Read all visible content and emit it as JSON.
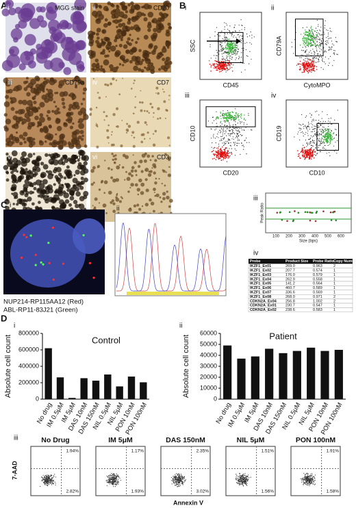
{
  "panel_a": {
    "letter": "A",
    "images": [
      {
        "index": "i",
        "label": "MGG stain"
      },
      {
        "index": "ii",
        "label": "CD20"
      },
      {
        "index": "iii",
        "label": "CD79a"
      },
      {
        "index": "iv",
        "label": "CD7"
      },
      {
        "index": "v",
        "label": "TdT"
      },
      {
        "index": "vi",
        "label": "CD3"
      }
    ]
  },
  "panel_b": {
    "letter": "B",
    "plots": [
      {
        "index": "i",
        "x_label": "CD45",
        "y_label": "SSC"
      },
      {
        "index": "ii",
        "x_label": "CytoMPO",
        "y_label": "CD79A"
      },
      {
        "index": "iii",
        "x_label": "CD20",
        "y_label": "CD10"
      },
      {
        "index": "iv",
        "x_label": "CD10",
        "y_label": "CD19"
      }
    ],
    "mlpa_plot": {
      "index": "iii",
      "x_label": "Size (bps)",
      "y_label": "Peak Ratio",
      "x_ticks": [
        "100",
        "200",
        "300",
        "400",
        "500",
        "600"
      ]
    },
    "mlpa_table": {
      "index": "iv",
      "header": [
        "Probe",
        "Product Size",
        "Probe Ratio",
        "Copy Number"
      ],
      "rows": [
        [
          "IKZF1_Ex01",
          "269.0",
          "0.963",
          "2"
        ],
        [
          "IKZF1_Ex02",
          "207.7",
          "0.574",
          "1"
        ],
        [
          "IKZF1_Ex03",
          "176.0",
          "0.579",
          "1"
        ],
        [
          "IKZF1_Ex04",
          "262.9",
          "0.558",
          "1"
        ],
        [
          "IKZF1_Ex05",
          "141.2",
          "0.564",
          "1"
        ],
        [
          "IKZF1_Ex06",
          "460.7",
          "0.589",
          "1"
        ],
        [
          "IKZF1_Ex07",
          "336.6",
          "0.569",
          "1"
        ],
        [
          "IKZF1_Ex08",
          "268.0",
          "0.971",
          "2"
        ],
        [
          "CDKN2A_Ex04",
          "256.8",
          "1.002",
          "2"
        ],
        [
          "CDKN2A_Ex01",
          "230.7",
          "0.547",
          "1"
        ],
        [
          "CDKN2A_Ex02",
          "238.6",
          "0.583",
          "1"
        ]
      ]
    }
  },
  "panel_c": {
    "letter": "C",
    "fish": {
      "index": "i",
      "captions": [
        "NUP214-RP115AA12 (Red)",
        "ABL-RP11-83J21 (Green)"
      ]
    },
    "trace": {
      "index": "ii"
    }
  },
  "panel_d": {
    "letter": "D",
    "chart_index": [
      "i",
      "ii"
    ],
    "flow": {
      "index": "iii",
      "y_label": "7-AAD",
      "x_label": "Annexin V",
      "plots": [
        {
          "title": "No Drug",
          "upper_right": "1.94%",
          "lower_right": "2.82%"
        },
        {
          "title": "IM 5μM",
          "upper_right": "1.17%",
          "lower_right": "1.93%"
        },
        {
          "title": "DAS 150nM",
          "upper_right": "2.35%",
          "lower_right": "3.02%"
        },
        {
          "title": "NIL 5μM",
          "upper_right": "1.51%",
          "lower_right": "1.56%"
        },
        {
          "title": "PON 100nM",
          "upper_right": "1.91%",
          "lower_right": "1.58%"
        }
      ]
    }
  },
  "chart_data": [
    {
      "type": "bar",
      "title": "Control",
      "y_label": "Absolute cell count",
      "categories": [
        "No drug",
        "IM 0.5μM",
        "IM 5μM",
        "DAS 10nM",
        "DAS 150nM",
        "NIL 0.5μM",
        "NIL 5μM",
        "PON 10nM",
        "PON 100nM"
      ],
      "values": [
        620000,
        265000,
        15000,
        255000,
        225000,
        300000,
        155000,
        275000,
        205000
      ],
      "color": "#111111",
      "ylim": [
        0,
        800000
      ],
      "yticks": [
        0,
        200000,
        400000,
        600000,
        800000
      ]
    },
    {
      "type": "bar",
      "title": "Patient",
      "y_label": "Absolute cell count",
      "categories": [
        "No drug",
        "IM 0.5μM",
        "IM 5μM",
        "DAS 10nM",
        "DAS 150nM",
        "NIL 0.5μM",
        "NIL 5μM",
        "PON 10nM",
        "PON 100nM"
      ],
      "values": [
        49000,
        37000,
        39000,
        46000,
        42000,
        44000,
        47000,
        44000,
        45000
      ],
      "color": "#111111",
      "ylim": [
        0,
        60000
      ],
      "yticks": [
        0,
        10000,
        20000,
        30000,
        40000,
        50000,
        60000
      ]
    }
  ]
}
